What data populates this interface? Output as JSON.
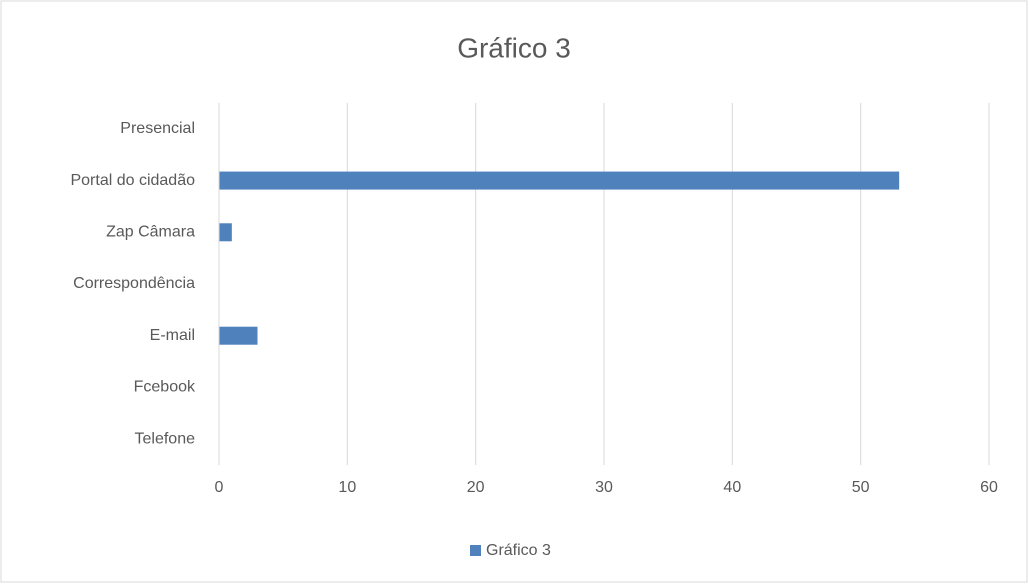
{
  "chart_data": {
    "type": "bar",
    "orientation": "horizontal",
    "title": "Gráfico 3",
    "categories": [
      "Presencial",
      "Portal do cidadão",
      "Zap Câmara",
      "Correspondência",
      "E-mail",
      "Fcebook",
      "Telefone"
    ],
    "series": [
      {
        "name": "Gráfico 3",
        "color": "#4f81bd",
        "values": [
          0,
          53,
          1,
          0,
          3,
          0,
          0
        ]
      }
    ],
    "xlim": [
      0,
      60
    ],
    "xticks": [
      0,
      10,
      20,
      30,
      40,
      50,
      60
    ],
    "grid": true,
    "legend": "bottom"
  }
}
